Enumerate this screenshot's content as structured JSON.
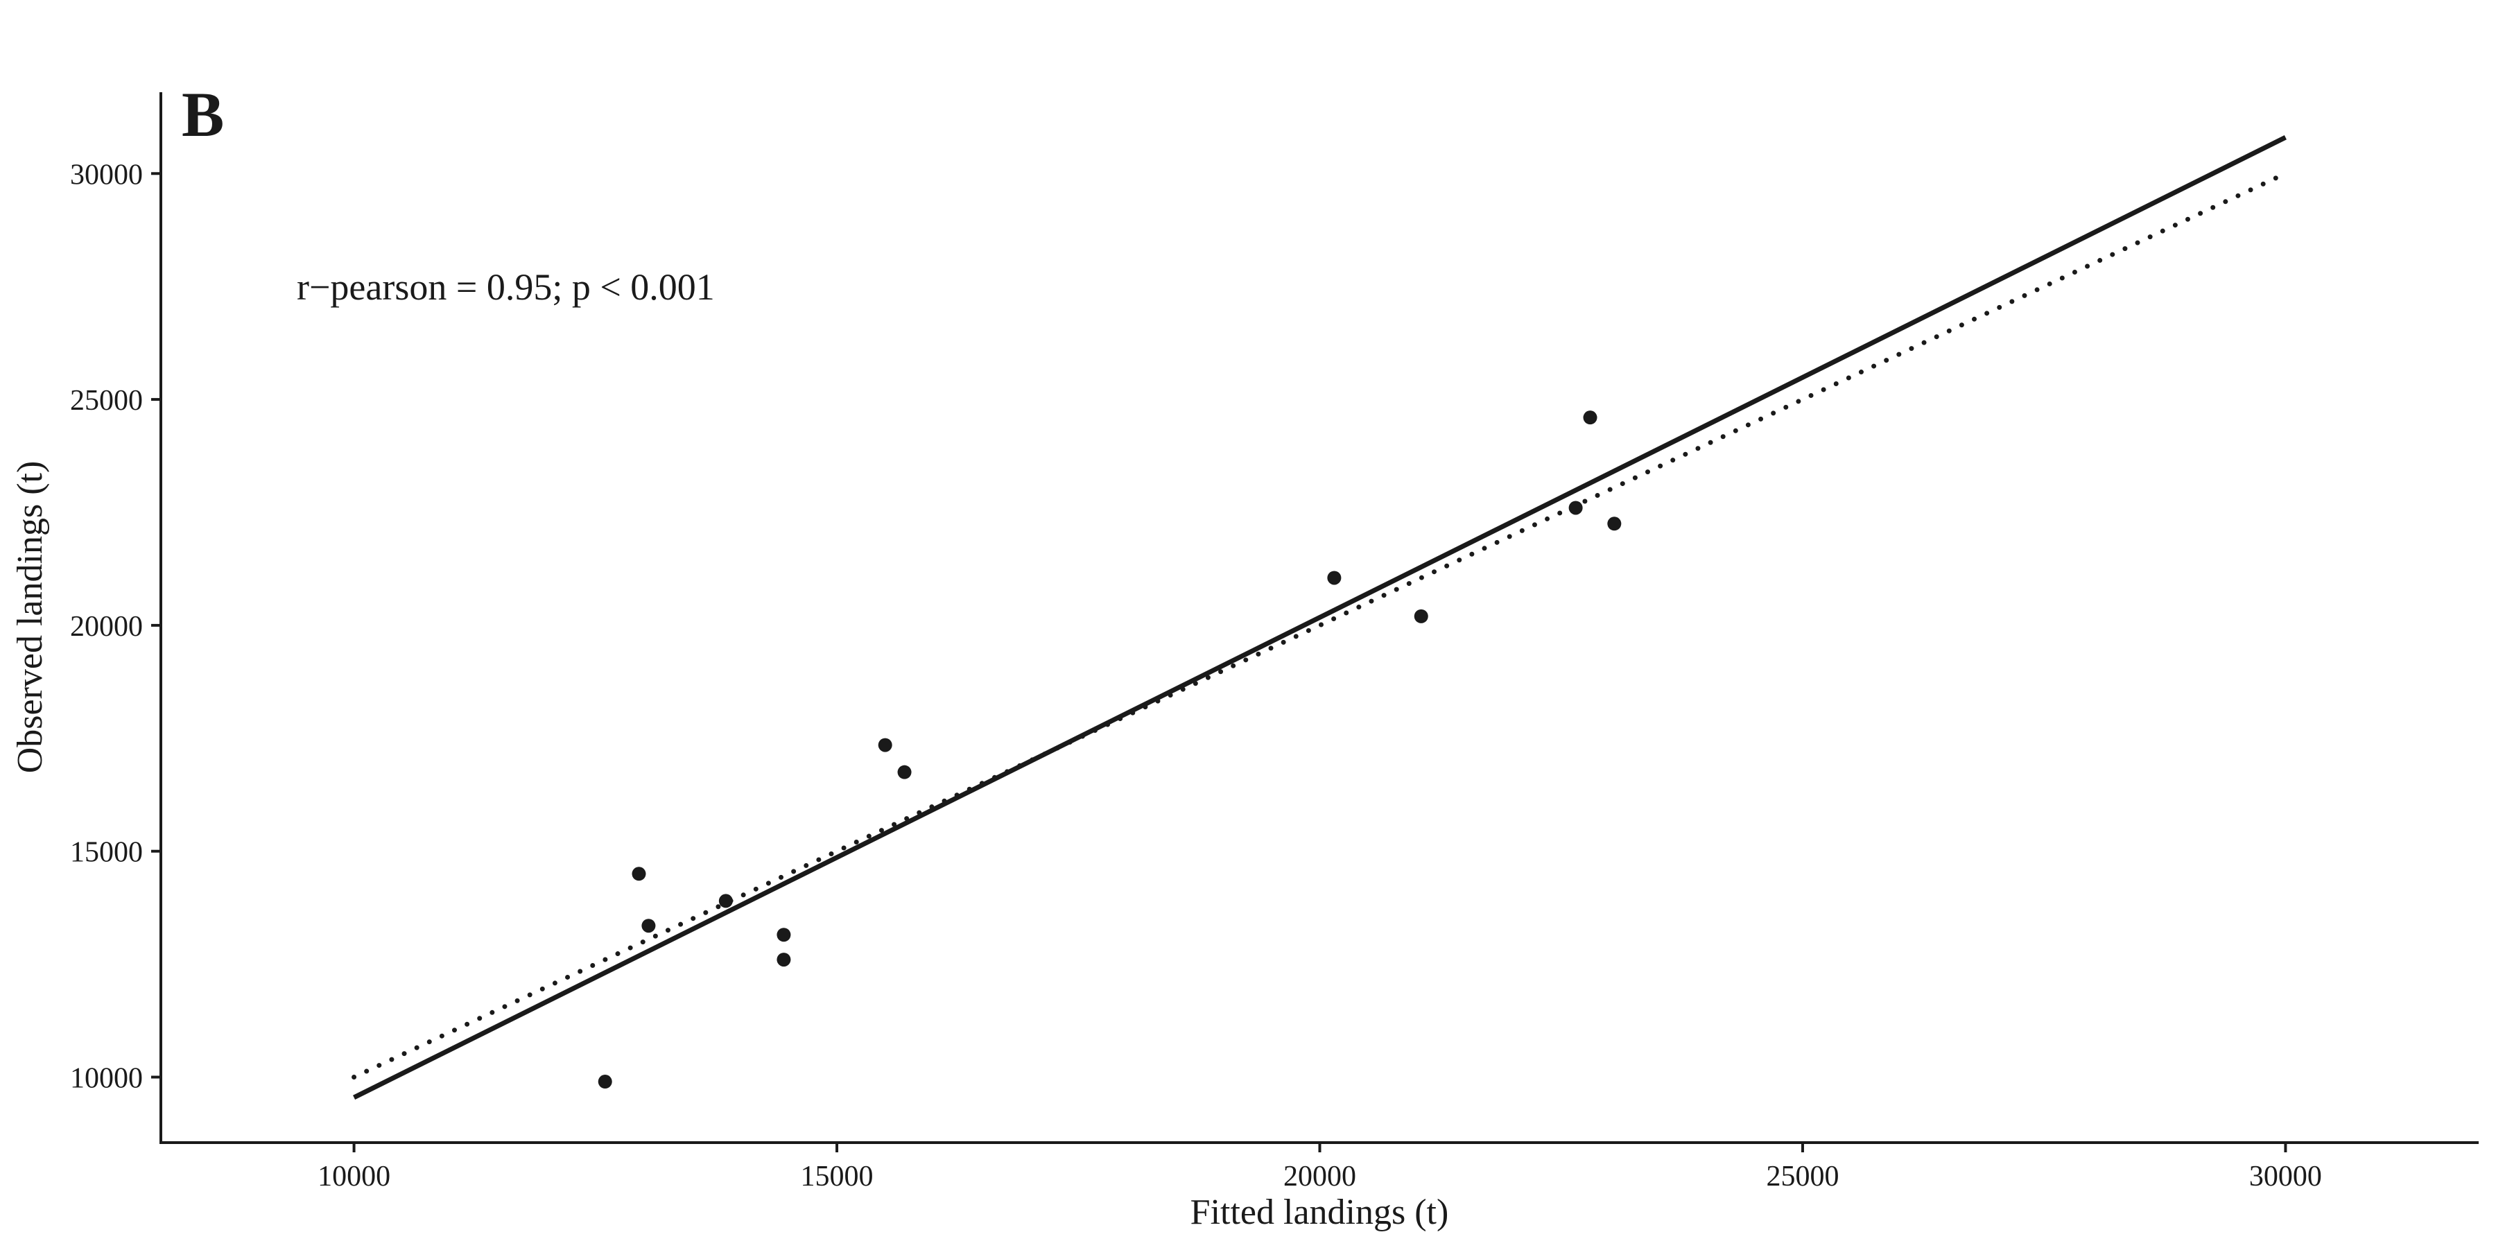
{
  "chart_data": {
    "type": "scatter",
    "panel_label": "B",
    "xlabel": "Fitted landings (t)",
    "ylabel": "Observed landings (t)",
    "xlim": [
      8000,
      32000
    ],
    "ylim": [
      8550,
      31800
    ],
    "xticks": [
      10000,
      15000,
      20000,
      25000,
      30000
    ],
    "yticks": [
      10000,
      15000,
      20000,
      25000,
      30000
    ],
    "annotation": "r−pearson = 0.95;  p < 0.001",
    "grid": false,
    "points": [
      {
        "x": 12600,
        "y": 9900
      },
      {
        "x": 12950,
        "y": 14500
      },
      {
        "x": 13050,
        "y": 13350
      },
      {
        "x": 13850,
        "y": 13900
      },
      {
        "x": 14450,
        "y": 13150
      },
      {
        "x": 14450,
        "y": 12600
      },
      {
        "x": 15500,
        "y": 17350
      },
      {
        "x": 15700,
        "y": 16750
      },
      {
        "x": 20150,
        "y": 21050
      },
      {
        "x": 21050,
        "y": 20200
      },
      {
        "x": 22650,
        "y": 22600
      },
      {
        "x": 22800,
        "y": 24600
      },
      {
        "x": 23050,
        "y": 22250
      }
    ],
    "lines": [
      {
        "style": "solid",
        "x": [
          10000,
          30000
        ],
        "y": [
          9550,
          30800
        ]
      },
      {
        "style": "dotted",
        "x": [
          10000,
          30000
        ],
        "y": [
          10000,
          30000
        ]
      }
    ],
    "colors": {
      "ink": "#1a1a1a",
      "background": "#ffffff"
    }
  }
}
